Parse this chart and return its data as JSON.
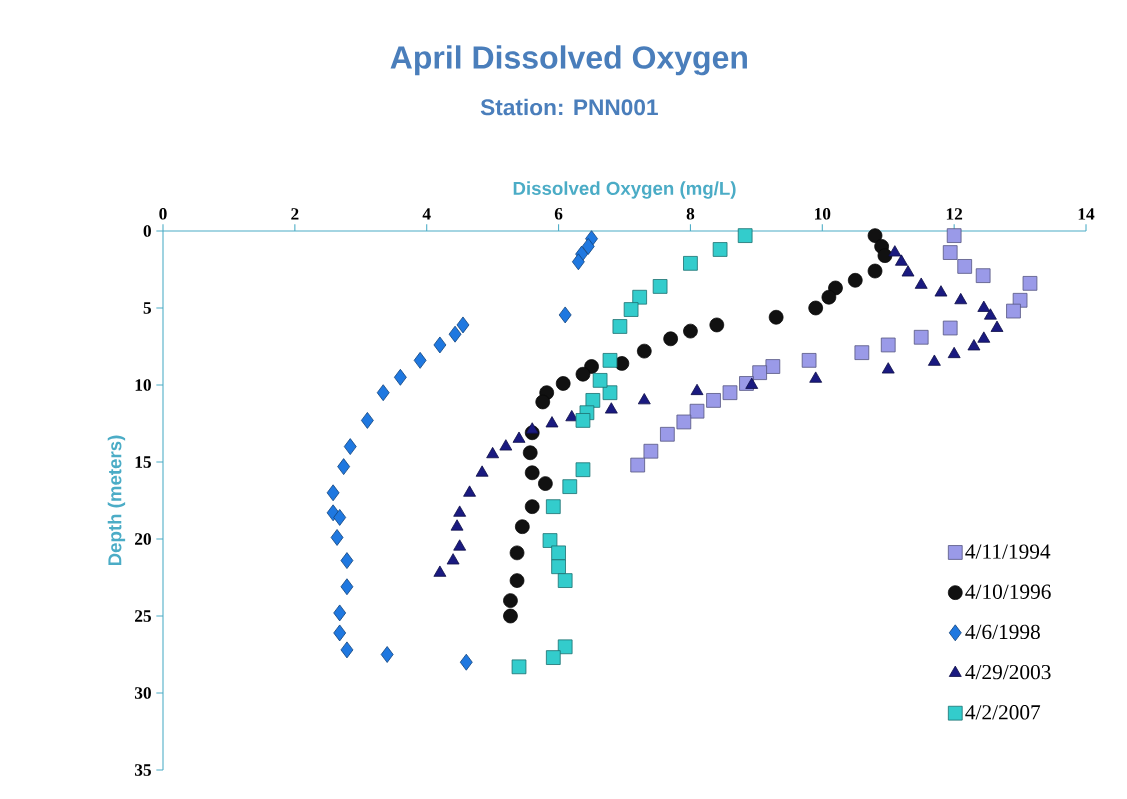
{
  "chart_data": {
    "type": "scatter",
    "title": "April Dissolved Oxygen",
    "subtitle": "Station: PNN001",
    "xlabel": "Dissolved Oxygen (mg/L)",
    "ylabel": "Depth (meters)",
    "xlim": [
      0,
      14
    ],
    "xticks": [
      0,
      2,
      4,
      6,
      8,
      10,
      12,
      14
    ],
    "ylim": [
      35,
      0
    ],
    "yticks": [
      0,
      5,
      10,
      15,
      20,
      25,
      30,
      35
    ],
    "grid": false,
    "legend": "bottom right",
    "series": [
      {
        "name": "4/11/1994",
        "color": "#9a9ae8",
        "marker": "square",
        "x": [
          12.0,
          11.94,
          12.16,
          12.44,
          13.15,
          13.0,
          12.9,
          11.94,
          11.5,
          11.0,
          10.6,
          9.8,
          9.25,
          9.05,
          8.85,
          8.6,
          8.35,
          8.1,
          7.9,
          7.65,
          7.4,
          7.2
        ],
        "values": [
          0.3,
          1.4,
          2.3,
          2.9,
          3.4,
          4.5,
          5.2,
          6.3,
          6.9,
          7.4,
          7.9,
          8.4,
          8.8,
          9.2,
          9.9,
          10.5,
          11.0,
          11.7,
          12.4,
          13.2,
          14.3,
          15.2
        ]
      },
      {
        "name": "4/10/1996",
        "color": "#111111",
        "marker": "circle",
        "x": [
          10.8,
          10.9,
          10.95,
          10.8,
          10.5,
          10.2,
          10.1,
          9.9,
          9.3,
          8.4,
          8.0,
          7.7,
          7.3,
          6.96,
          6.5,
          6.37,
          6.07,
          5.82,
          5.76,
          5.6,
          5.57,
          5.6,
          5.8,
          5.6,
          5.45,
          5.37,
          5.37,
          5.27,
          5.27
        ],
        "values": [
          0.3,
          1.0,
          1.6,
          2.6,
          3.2,
          3.7,
          4.3,
          5.0,
          5.6,
          6.1,
          6.5,
          7.0,
          7.8,
          8.6,
          8.8,
          9.3,
          9.9,
          10.5,
          11.1,
          13.1,
          14.4,
          15.7,
          16.4,
          17.9,
          19.2,
          20.9,
          22.7,
          24.0,
          25.0
        ]
      },
      {
        "name": "4/6/1998",
        "color": "#1f78e0",
        "marker": "diamond",
        "x": [
          6.5,
          6.45,
          6.35,
          6.3,
          6.1,
          4.55,
          4.43,
          4.2,
          3.9,
          3.6,
          3.34,
          3.1,
          2.84,
          2.74,
          2.58,
          2.58,
          2.68,
          2.64,
          2.79,
          2.79,
          2.68,
          2.68,
          2.79,
          3.4,
          4.6
        ],
        "values": [
          0.5,
          1.0,
          1.5,
          2.0,
          5.45,
          6.1,
          6.7,
          7.4,
          8.4,
          9.5,
          10.5,
          12.3,
          14.0,
          15.3,
          17.0,
          18.3,
          18.6,
          19.9,
          21.4,
          23.1,
          24.8,
          26.1,
          27.2,
          27.5,
          28.0
        ]
      },
      {
        "name": "4/29/2003",
        "color": "#1a1a80",
        "marker": "triangle",
        "x": [
          11.1,
          11.2,
          11.3,
          11.5,
          11.8,
          12.1,
          12.45,
          12.55,
          12.65,
          12.45,
          12.3,
          12.0,
          11.7,
          11.0,
          9.9,
          8.93,
          8.1,
          7.3,
          6.8,
          6.2,
          5.9,
          5.6,
          5.4,
          5.2,
          5.0,
          4.84,
          4.65,
          4.5,
          4.46,
          4.5,
          4.4,
          4.2
        ],
        "values": [
          1.4,
          2.0,
          2.7,
          3.5,
          4.0,
          4.5,
          5.0,
          5.5,
          6.3,
          7.0,
          7.5,
          8.0,
          8.5,
          9.0,
          9.6,
          10.0,
          10.4,
          11.0,
          11.6,
          12.1,
          12.5,
          12.9,
          13.5,
          14.0,
          14.5,
          15.7,
          17.0,
          18.3,
          19.2,
          20.5,
          21.4,
          22.2
        ]
      },
      {
        "name": "4/2/2007",
        "color": "#33cccc",
        "marker": "square",
        "x": [
          8.83,
          8.45,
          8.0,
          7.54,
          7.23,
          7.1,
          6.93,
          6.78,
          6.78,
          6.63,
          6.52,
          6.43,
          6.37,
          6.37,
          6.17,
          5.92,
          5.87,
          6.0,
          6.0,
          6.1,
          6.1,
          5.92,
          5.4
        ],
        "values": [
          0.3,
          1.2,
          2.1,
          3.6,
          4.3,
          5.1,
          6.2,
          8.4,
          10.5,
          9.7,
          11.0,
          11.8,
          12.3,
          15.5,
          16.6,
          17.9,
          20.1,
          20.9,
          21.8,
          22.7,
          27.0,
          27.7,
          28.3
        ]
      }
    ]
  }
}
